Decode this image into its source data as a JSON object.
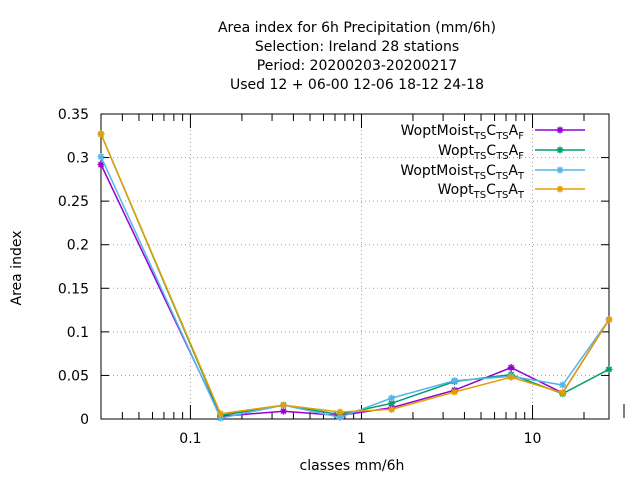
{
  "chart_data": {
    "type": "line",
    "title_lines": [
      "Area index  for 6h Precipitation (mm/6h)",
      "Selection: Ireland     28 stations",
      "Period: 20200203-20200217",
      "Used  12 + 06-00 12-06 18-12 24-18"
    ],
    "xlabel": "classes mm/6h",
    "ylabel": "Area index",
    "xscale": "log",
    "xlim": [
      0.03,
      28
    ],
    "ylim": [
      0,
      0.35
    ],
    "x_ticks": [
      {
        "value": 0.1,
        "label": "0.1"
      },
      {
        "value": 1,
        "label": "1"
      },
      {
        "value": 10,
        "label": "10"
      }
    ],
    "y_ticks": [
      {
        "value": 0,
        "label": "0"
      },
      {
        "value": 0.05,
        "label": "0.05"
      },
      {
        "value": 0.1,
        "label": "0.1"
      },
      {
        "value": 0.15,
        "label": "0.15"
      },
      {
        "value": 0.2,
        "label": "0.2"
      },
      {
        "value": 0.25,
        "label": "0.25"
      },
      {
        "value": 0.3,
        "label": "0.3"
      },
      {
        "value": 0.35,
        "label": "0.35"
      }
    ],
    "grid": true,
    "legend_position": "top-right",
    "x": [
      0.03,
      0.15,
      0.35,
      0.75,
      1.5,
      3.5,
      7.5,
      15,
      28
    ],
    "series": [
      {
        "name_main": "WoptMoist",
        "name_parts": [
          "TS",
          "C",
          "TS",
          "A",
          "F"
        ],
        "color": "#9400d3",
        "values": [
          0.292,
          0.003,
          0.009,
          0.004,
          0.013,
          0.033,
          0.059,
          0.03,
          0.114
        ]
      },
      {
        "name_main": "Wopt",
        "name_parts": [
          "TS",
          "C",
          "TS",
          "A",
          "F"
        ],
        "color": "#009e73",
        "values": [
          0.327,
          0.004,
          0.016,
          0.005,
          0.018,
          0.043,
          0.051,
          0.029,
          0.057
        ]
      },
      {
        "name_main": "WoptMoist",
        "name_parts": [
          "TS",
          "C",
          "TS",
          "A",
          "T"
        ],
        "color": "#56b4e9",
        "values": [
          0.301,
          0.001,
          0.016,
          0.002,
          0.024,
          0.044,
          0.049,
          0.039,
          0.114
        ]
      },
      {
        "name_main": "Wopt",
        "name_parts": [
          "TS",
          "C",
          "TS",
          "A",
          "T"
        ],
        "color": "#e69f00",
        "values": [
          0.327,
          0.006,
          0.016,
          0.008,
          0.011,
          0.031,
          0.048,
          0.03,
          0.114
        ]
      }
    ]
  }
}
